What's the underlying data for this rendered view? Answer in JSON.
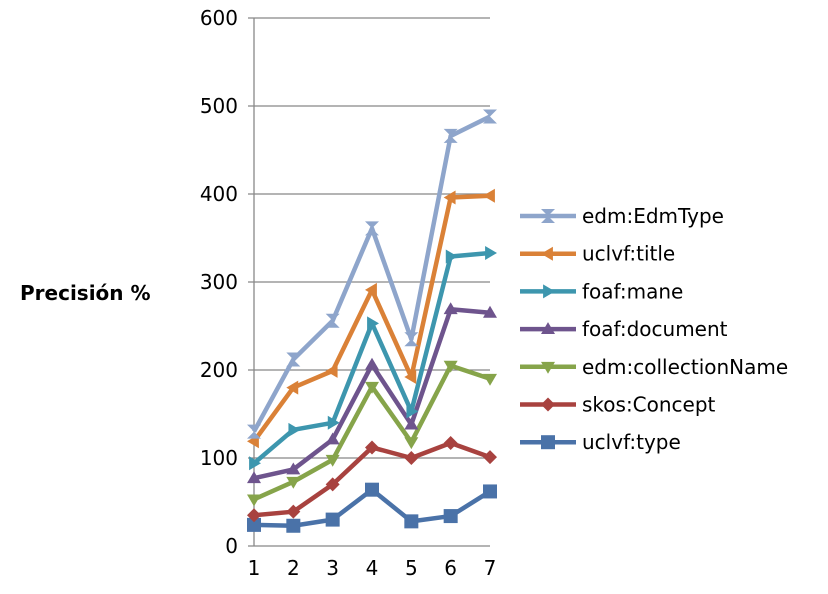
{
  "chart_data": {
    "type": "line",
    "title": "",
    "xlabel": "",
    "ylabel": "Precisión %",
    "x": [
      1,
      2,
      3,
      4,
      5,
      6,
      7
    ],
    "ylim": [
      0,
      600
    ],
    "yticks": [
      0,
      100,
      200,
      300,
      400,
      500,
      600
    ],
    "grid": "horizontal",
    "legend_position": "right",
    "series": [
      {
        "name": "uclvf:type",
        "color": "#4a72a8",
        "marker": "square",
        "values": [
          24,
          23,
          30,
          64,
          28,
          34,
          62
        ]
      },
      {
        "name": "skos:Concept",
        "color": "#a8423f",
        "marker": "diamond",
        "values": [
          35,
          39,
          70,
          112,
          100,
          117,
          101
        ]
      },
      {
        "name": "edm:collectionName",
        "color": "#86a44a",
        "marker": "triangle-down",
        "values": [
          53,
          73,
          98,
          181,
          118,
          205,
          190
        ]
      },
      {
        "name": "foaf:document",
        "color": "#6e548d",
        "marker": "triangle-up",
        "values": [
          77,
          87,
          121,
          206,
          138,
          269,
          265
        ]
      },
      {
        "name": "foaf:mane",
        "color": "#3d96ae",
        "marker": "triangle-right",
        "values": [
          94,
          132,
          140,
          253,
          153,
          329,
          333
        ]
      },
      {
        "name": "uclvf:title",
        "color": "#da8137",
        "marker": "triangle-left",
        "values": [
          119,
          180,
          199,
          291,
          192,
          396,
          398
        ]
      },
      {
        "name": "edm:EdmType",
        "color": "#8ea5cb",
        "marker": "x-tri",
        "values": [
          130,
          212,
          256,
          361,
          235,
          466,
          488
        ]
      }
    ],
    "legend_order": [
      "edm:EdmType",
      "uclvf:title",
      "foaf:mane",
      "foaf:document",
      "edm:collectionName",
      "skos:Concept",
      "uclvf:type"
    ]
  }
}
